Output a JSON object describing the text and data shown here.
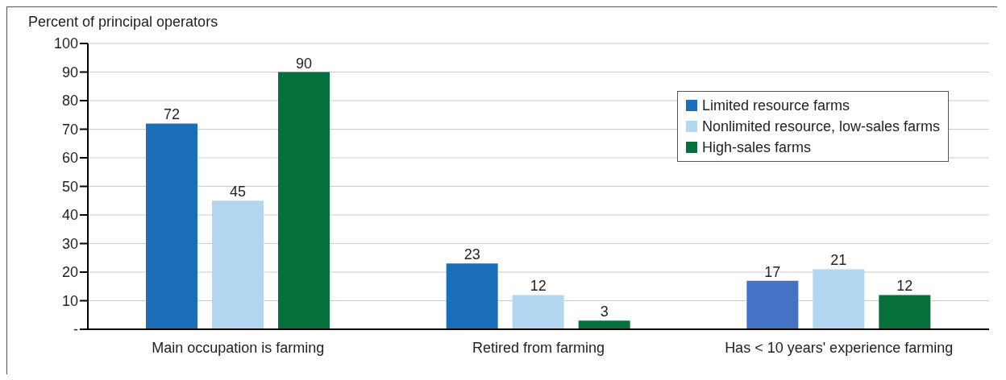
{
  "chart_data": {
    "type": "bar",
    "ylabel": "Percent of principal operators",
    "categories": [
      "Main occupation is farming",
      "Retired from farming",
      "Has < 10 years' experience farming"
    ],
    "series": [
      {
        "name": "Limited resource farms",
        "color": "#1b6fb8",
        "colors": [
          "#1b6fb8",
          "#1b6fb8",
          "#4472c4"
        ],
        "values": [
          72,
          23,
          17
        ]
      },
      {
        "name": "Nonlimited resource, low-sales farms",
        "color": "#b3d7f0",
        "values": [
          45,
          12,
          21
        ]
      },
      {
        "name": "High-sales farms",
        "color": "#06703c",
        "values": [
          90,
          3,
          12
        ]
      }
    ],
    "ylim": [
      0,
      100
    ],
    "yticks": [
      {
        "value": 0,
        "label": "-"
      },
      10,
      20,
      30,
      40,
      50,
      60,
      70,
      80,
      90,
      100
    ],
    "grid": "y",
    "legend": "top right",
    "data_labels": true
  }
}
